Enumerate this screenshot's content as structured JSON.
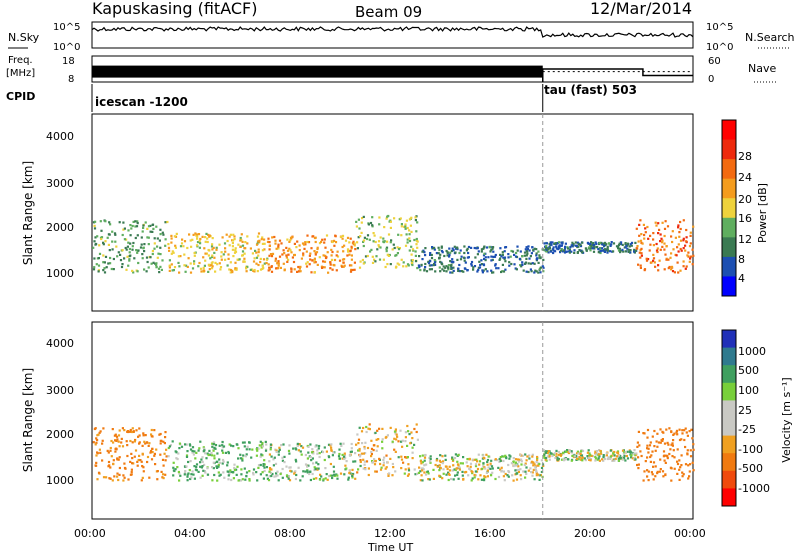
{
  "header": {
    "station": "Kapuskasing (fitACF)",
    "beam": "Beam 09",
    "date": "12/Mar/2014"
  },
  "noise_panel": {
    "left_label": "N.Sky",
    "right_label": "N.Search",
    "left_ticks": [
      "10^5",
      "10^0"
    ],
    "right_ticks": [
      "10^5",
      "10^0"
    ]
  },
  "freq_panel": {
    "left_label_line1": "Freq.",
    "left_label_line2": "[MHz]",
    "left_ticks": [
      "18",
      "8"
    ],
    "right_label": "Nave",
    "right_ticks": [
      "60",
      "0"
    ]
  },
  "cpid_panel": {
    "label": "CPID",
    "modes": [
      {
        "name": "icescan -1200",
        "start_hour": 0
      },
      {
        "name": "tau (fast) 503",
        "start_hour": 18
      }
    ]
  },
  "power_panel": {
    "ylabel": "Slant Range [km]",
    "yticks": [
      "1000",
      "2000",
      "3000",
      "4000"
    ],
    "colorbar_label": "Power [dB]",
    "colorbar_ticks": [
      "4",
      "8",
      "12",
      "16",
      "20",
      "24",
      "28"
    ],
    "colors": [
      "#0000ff",
      "#1c4fb2",
      "#3a7a52",
      "#5fae5f",
      "#eed23c",
      "#f49c1e",
      "#f36a10",
      "#ee2a0d",
      "#ff0000"
    ]
  },
  "velocity_panel": {
    "ylabel": "Slant Range [km]",
    "yticks": [
      "1000",
      "2000",
      "3000",
      "4000"
    ],
    "colorbar_label": "Velocity [m s⁻¹]",
    "colorbar_ticks": [
      "1000",
      "500",
      "100",
      "25",
      "-25",
      "-100",
      "-500",
      "-1000"
    ],
    "colors": [
      "#2030b8",
      "#2f7a8e",
      "#3f9f5f",
      "#78cf3a",
      "#c9c9c4",
      "#c9c9c4",
      "#f0a020",
      "#f07a10",
      "#f04a0c",
      "#ff0000"
    ]
  },
  "x_axis": {
    "label": "Time UT",
    "ticks": [
      "00:00",
      "04:00",
      "08:00",
      "12:00",
      "16:00",
      "20:00",
      "00:00"
    ]
  },
  "chart_data": {
    "type": "heatmap",
    "x_range_hours": [
      0,
      24
    ],
    "y_range_km": [
      0,
      4500
    ],
    "mode_change_hour": 18,
    "frequency_mhz": [
      {
        "start_hour": 0,
        "end_hour": 18,
        "value": 12
      },
      {
        "start_hour": 18,
        "end_hour": 24,
        "value": 12
      }
    ],
    "nave": [
      {
        "start_hour": 18,
        "end_hour": 22,
        "value": 30
      },
      {
        "start_hour": 22,
        "end_hour": 24,
        "value": 15
      }
    ],
    "scatter_regions": [
      {
        "start_hour": 0.0,
        "end_hour": 3.0,
        "range_low_km": 900,
        "range_high_km": 2100,
        "power_db": 10,
        "velocity": -150
      },
      {
        "start_hour": 3.0,
        "end_hour": 7.0,
        "range_low_km": 900,
        "range_high_km": 1800,
        "power_db": 16,
        "velocity": 80
      },
      {
        "start_hour": 7.0,
        "end_hour": 10.5,
        "range_low_km": 900,
        "range_high_km": 1750,
        "power_db": 20,
        "velocity": 40
      },
      {
        "start_hour": 10.5,
        "end_hour": 13.0,
        "range_low_km": 1000,
        "range_high_km": 2200,
        "power_db": 12,
        "velocity": -20
      },
      {
        "start_hour": 13.0,
        "end_hour": 18.0,
        "range_low_km": 900,
        "range_high_km": 1500,
        "power_db": 6,
        "velocity": 10
      },
      {
        "start_hour": 18.0,
        "end_hour": 21.7,
        "range_low_km": 1350,
        "range_high_km": 1600,
        "power_db": 6,
        "velocity": 10
      },
      {
        "start_hour": 21.7,
        "end_hour": 24.0,
        "range_low_km": 900,
        "range_high_km": 2100,
        "power_db": 22,
        "velocity": -300
      }
    ]
  }
}
